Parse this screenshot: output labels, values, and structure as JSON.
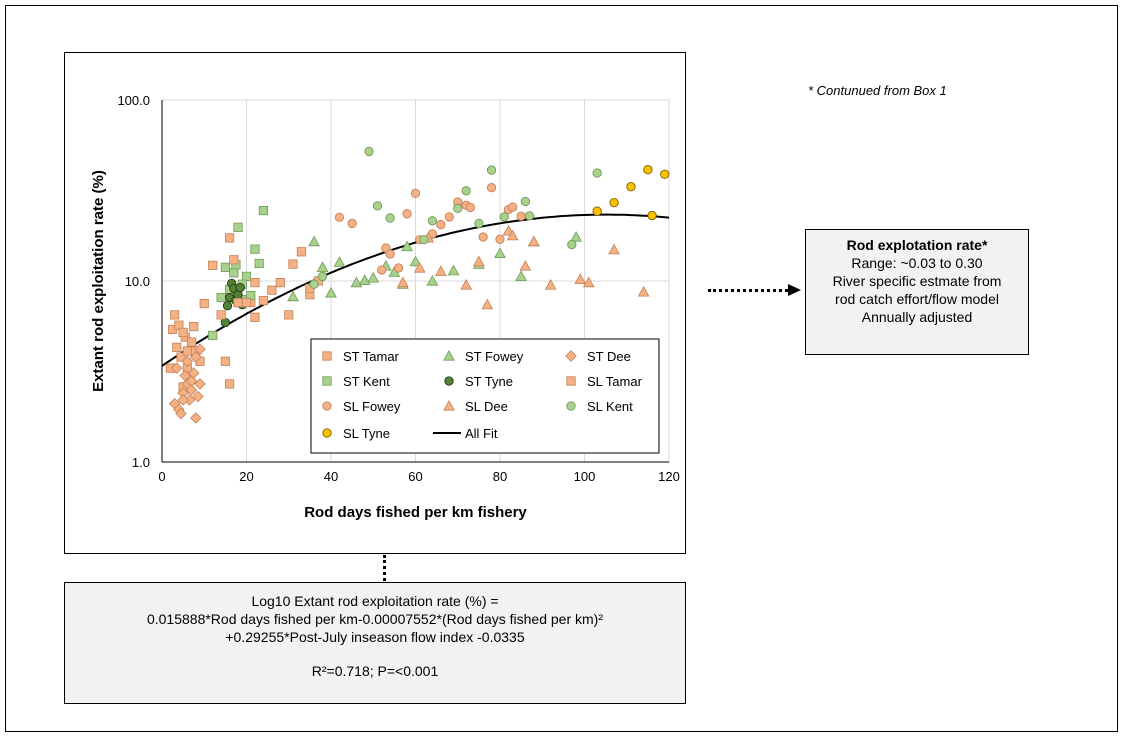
{
  "note": "* Contunued from Box 1",
  "rod_box": {
    "title": "Rod explotation rate*",
    "line1": "Range: ~0.03 to 0.30",
    "line2": "River specific estmate from",
    "line3": "rod catch effort/flow model",
    "line4": "Annually adjusted"
  },
  "equation": {
    "line1": "Log10 Extant rod exploitation rate (%) =",
    "line2": "0.015888*Rod days fished per km-0.00007552*(Rod days fished per km)²",
    "line3": "+0.29255*Post-July inseason flow index -0.0335",
    "line4": "R²=0.718; P=<0.001"
  },
  "chart_data": {
    "type": "scatter",
    "title": "",
    "xlabel": "Rod days fished per km  fishery",
    "ylabel": "Extant rod exploitation  rate (%)",
    "xlim": [
      0,
      120
    ],
    "ylim": [
      1,
      100
    ],
    "yscale": "log",
    "grid": true,
    "legend_position": "bottom-right",
    "x_ticks": [
      "0",
      "20",
      "40",
      "60",
      "80",
      "100",
      "120"
    ],
    "y_ticks": [
      "1.0",
      "10.0",
      "100.0"
    ],
    "x_tick_values": [
      0,
      20,
      40,
      60,
      80,
      100,
      120
    ],
    "y_tick_values": [
      1,
      10,
      100
    ],
    "series": [
      {
        "name": "ST Tamar",
        "marker": "square",
        "fill": "#f4b183",
        "stroke": "#c5815a",
        "points": [
          [
            2,
            3.3
          ],
          [
            2.5,
            5.4
          ],
          [
            3,
            6.5
          ],
          [
            3.5,
            4.3
          ],
          [
            4,
            5.7
          ],
          [
            4.5,
            3.8
          ],
          [
            5,
            2.6
          ],
          [
            5.5,
            4.9
          ],
          [
            6,
            3.3
          ],
          [
            7,
            4.6
          ],
          [
            8,
            4.1
          ],
          [
            9,
            3.6
          ],
          [
            15,
            3.6
          ],
          [
            16,
            2.7
          ],
          [
            21,
            7.6
          ],
          [
            22,
            6.3
          ],
          [
            24,
            7.8
          ],
          [
            28,
            9.8
          ],
          [
            33,
            14.5
          ],
          [
            35,
            8.4
          ]
        ]
      },
      {
        "name": "ST Fowey",
        "marker": "triangle",
        "fill": "#a9d18e",
        "stroke": "#6f9a57",
        "points": [
          [
            31,
            8.2
          ],
          [
            36,
            16.5
          ],
          [
            38,
            11.9
          ],
          [
            40,
            8.6
          ],
          [
            42,
            12.7
          ],
          [
            46,
            9.8
          ],
          [
            48,
            10.1
          ],
          [
            50,
            10.4
          ],
          [
            53,
            12.1
          ],
          [
            55,
            11.2
          ],
          [
            57,
            9.6
          ],
          [
            58,
            15.5
          ],
          [
            60,
            12.8
          ],
          [
            64,
            10.0
          ],
          [
            69,
            11.4
          ],
          [
            75,
            12.4
          ],
          [
            80,
            14.2
          ],
          [
            85,
            10.6
          ],
          [
            88,
            16.5
          ],
          [
            98,
            17.5
          ]
        ]
      },
      {
        "name": "ST Dee",
        "marker": "diamond",
        "fill": "#f4b183",
        "stroke": "#c5815a",
        "points": [
          [
            3,
            2.1
          ],
          [
            3.5,
            3.3
          ],
          [
            4,
            1.95
          ],
          [
            4.5,
            1.85
          ],
          [
            5,
            2.4
          ],
          [
            5.5,
            3.0
          ],
          [
            6,
            2.7
          ],
          [
            6.5,
            2.2
          ],
          [
            7,
            2.8
          ],
          [
            7.5,
            3.1
          ],
          [
            8,
            1.75
          ],
          [
            8.5,
            2.3
          ],
          [
            9,
            2.7
          ],
          [
            6,
            3.6
          ],
          [
            7,
            2.5
          ],
          [
            8,
            3.8
          ],
          [
            9,
            4.2
          ],
          [
            5,
            2.2
          ]
        ]
      },
      {
        "name": "ST Kent",
        "marker": "square",
        "fill": "#a9d18e",
        "stroke": "#6f9a57",
        "points": [
          [
            12,
            5.0
          ],
          [
            14,
            8.1
          ],
          [
            15,
            11.9
          ],
          [
            16,
            9.0
          ],
          [
            17,
            11.1
          ],
          [
            17.5,
            12.3
          ],
          [
            18,
            19.8
          ],
          [
            19,
            7.9
          ],
          [
            20,
            10.6
          ],
          [
            22,
            15.0
          ],
          [
            23,
            12.5
          ],
          [
            24,
            24.5
          ],
          [
            19,
            9.6
          ],
          [
            21,
            8.3
          ]
        ]
      },
      {
        "name": "ST Tyne",
        "marker": "circle",
        "fill": "#548235",
        "stroke": "#1e3a12",
        "points": [
          [
            15,
            5.9
          ],
          [
            15.5,
            7.3
          ],
          [
            16,
            8.1
          ],
          [
            16.5,
            9.7
          ],
          [
            17,
            9.1
          ],
          [
            17.5,
            7.8
          ],
          [
            18,
            8.4
          ],
          [
            18.5,
            9.2
          ],
          [
            19,
            7.4
          ]
        ]
      },
      {
        "name": "SL Tamar",
        "marker": "square",
        "fill": "#f4b183",
        "stroke": "#c5815a",
        "points": [
          [
            5,
            5.2
          ],
          [
            6,
            4.1
          ],
          [
            7.5,
            5.6
          ],
          [
            10,
            7.5
          ],
          [
            12,
            12.2
          ],
          [
            14,
            6.5
          ],
          [
            16,
            17.3
          ],
          [
            17,
            13.1
          ],
          [
            18,
            7.6
          ],
          [
            20,
            7.6
          ],
          [
            22,
            9.8
          ],
          [
            26,
            8.9
          ],
          [
            30,
            6.5
          ],
          [
            31,
            12.4
          ],
          [
            35,
            9.1
          ],
          [
            37,
            10.0
          ]
        ]
      },
      {
        "name": "SL Fowey",
        "marker": "circle",
        "fill": "#f4b183",
        "stroke": "#c5815a",
        "points": [
          [
            42,
            22.5
          ],
          [
            45,
            20.8
          ],
          [
            52,
            11.5
          ],
          [
            53,
            15.2
          ],
          [
            54,
            14.1
          ],
          [
            56,
            11.8
          ],
          [
            58,
            23.5
          ],
          [
            60,
            30.5
          ],
          [
            61,
            16.9
          ],
          [
            64,
            18.2
          ],
          [
            66,
            20.5
          ],
          [
            68,
            22.6
          ],
          [
            70,
            27.3
          ],
          [
            72,
            26.2
          ],
          [
            73,
            25.5
          ],
          [
            76,
            17.5
          ],
          [
            78,
            32.8
          ],
          [
            80,
            17.0
          ],
          [
            82,
            24.8
          ],
          [
            83,
            25.6
          ],
          [
            85,
            22.8
          ]
        ]
      },
      {
        "name": "SL Dee",
        "marker": "triangle",
        "fill": "#f4b183",
        "stroke": "#c5815a",
        "points": [
          [
            57,
            9.8
          ],
          [
            61,
            11.8
          ],
          [
            63,
            17.3
          ],
          [
            66,
            11.3
          ],
          [
            72,
            9.5
          ],
          [
            75,
            12.8
          ],
          [
            77,
            7.4
          ],
          [
            82,
            18.9
          ],
          [
            83,
            17.8
          ],
          [
            86,
            12.1
          ],
          [
            88,
            16.5
          ],
          [
            92,
            9.5
          ],
          [
            99,
            10.2
          ],
          [
            101,
            9.8
          ],
          [
            107,
            14.9
          ],
          [
            114,
            8.7
          ]
        ]
      },
      {
        "name": "SL Kent",
        "marker": "circle",
        "fill": "#a9d18e",
        "stroke": "#6f9a57",
        "points": [
          [
            36,
            9.6
          ],
          [
            38,
            10.6
          ],
          [
            49,
            52.0
          ],
          [
            51,
            26.0
          ],
          [
            54,
            22.3
          ],
          [
            62,
            16.9
          ],
          [
            64,
            21.5
          ],
          [
            70,
            25.2
          ],
          [
            72,
            31.5
          ],
          [
            75,
            20.8
          ],
          [
            78,
            41.0
          ],
          [
            81,
            22.6
          ],
          [
            86,
            27.5
          ],
          [
            87,
            22.9
          ],
          [
            97,
            15.9
          ],
          [
            103,
            39.5
          ]
        ]
      },
      {
        "name": "SL Tyne",
        "marker": "circle",
        "fill": "#ffc000",
        "stroke": "#7f6000",
        "points": [
          [
            103,
            24.3
          ],
          [
            107,
            27.1
          ],
          [
            111,
            33.2
          ],
          [
            115,
            41.2
          ],
          [
            116,
            23.0
          ],
          [
            119,
            38.9
          ]
        ]
      },
      {
        "name": "All Fit",
        "marker": "line",
        "stroke": "#000000",
        "coefficients": {
          "a": 0.015888,
          "b": -7.552e-05,
          "c": 0.5311
        }
      }
    ]
  }
}
